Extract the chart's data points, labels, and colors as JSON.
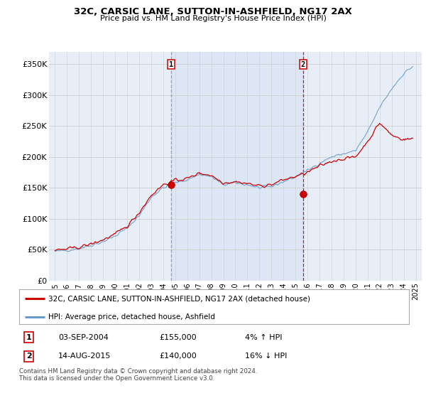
{
  "title": "32C, CARSIC LANE, SUTTON-IN-ASHFIELD, NG17 2AX",
  "subtitle": "Price paid vs. HM Land Registry's House Price Index (HPI)",
  "ylabel_ticks": [
    "£0",
    "£50K",
    "£100K",
    "£150K",
    "£200K",
    "£250K",
    "£300K",
    "£350K"
  ],
  "ytick_vals": [
    0,
    50000,
    100000,
    150000,
    200000,
    250000,
    300000,
    350000
  ],
  "ylim": [
    0,
    370000
  ],
  "xlim_start": 1994.5,
  "xlim_end": 2025.5,
  "purchase1": {
    "date": "03-SEP-2004",
    "price": 155000,
    "year": 2004.67,
    "pct": "4%",
    "dir": "↑"
  },
  "purchase2": {
    "date": "14-AUG-2015",
    "price": 140000,
    "year": 2015.62,
    "pct": "16%",
    "dir": "↓"
  },
  "legend_property": "32C, CARSIC LANE, SUTTON-IN-ASHFIELD, NG17 2AX (detached house)",
  "legend_hpi": "HPI: Average price, detached house, Ashfield",
  "footnote": "Contains HM Land Registry data © Crown copyright and database right 2024.\nThis data is licensed under the Open Government Licence v3.0.",
  "property_color": "#cc0000",
  "hpi_color": "#6699cc",
  "hpi_fill_color": "#ddeeff",
  "vline1_color": "#888888",
  "vline2_color": "#cc0000",
  "grid_color": "#cccccc",
  "plot_bg": "#e8eef8"
}
